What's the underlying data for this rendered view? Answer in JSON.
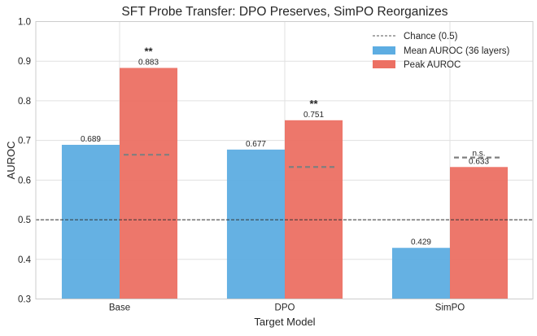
{
  "chart_data": {
    "type": "bar",
    "title": "SFT Probe Transfer: DPO Preserves, SimPO Reorganizes",
    "xlabel": "Target Model",
    "ylabel": "AUROC",
    "ylim": [
      0.3,
      1.0
    ],
    "yticks": [
      "0.3",
      "0.4",
      "0.5",
      "0.6",
      "0.7",
      "0.8",
      "0.9",
      "1.0"
    ],
    "grid": true,
    "legend_position": "top-right",
    "categories": [
      "Base",
      "DPO",
      "SimPO"
    ],
    "series": [
      {
        "name": "Mean AUROC (36 layers)",
        "color": "#5dade2",
        "values": [
          0.689,
          0.677,
          0.429
        ],
        "labels": [
          "0.689",
          "0.677",
          "0.429"
        ]
      },
      {
        "name": "Peak AUROC",
        "color": "#ec7063",
        "values": [
          0.883,
          0.751,
          0.633
        ],
        "labels": [
          "0.883",
          "0.751",
          "0.633"
        ]
      }
    ],
    "reference_line": {
      "name": "Chance (0.5)",
      "value": 0.5,
      "color": "#333333"
    },
    "null_thresholds": {
      "values": [
        0.664,
        0.633,
        0.657
      ],
      "color": "#7f7f7f"
    },
    "significance": [
      "**",
      "**",
      "n.s."
    ]
  }
}
